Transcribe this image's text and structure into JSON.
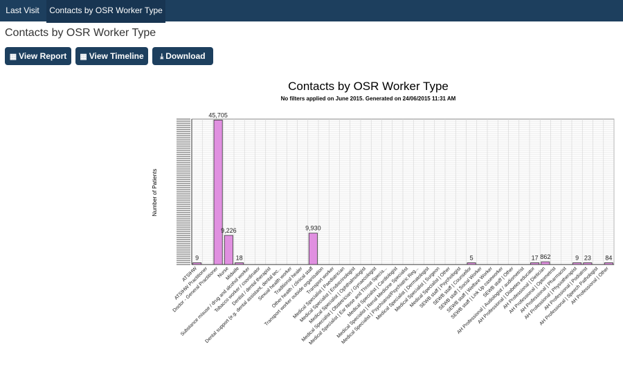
{
  "tabs": [
    {
      "label": "Last Visit"
    },
    {
      "label": "Contacts by OSR Worker Type"
    }
  ],
  "page": {
    "title": "Contacts by OSR Worker Type"
  },
  "toolbar": {
    "view_report": "View Report",
    "view_timeline": "View Timeline",
    "download": "Download"
  },
  "chart_data": {
    "type": "bar",
    "title": "Contacts by OSR Worker Type",
    "subtitle": "No filters applied on June 2015. Generated on 24/06/2015 11:31 AM",
    "ylabel": "Number of Patients",
    "xlabel": "",
    "bar_color": "#e090e0",
    "grid": true,
    "categories": [
      "ATSIHW",
      "ATSIHW Practitioner",
      "Doctor - General Practitioner",
      "Nurse",
      "Midwife",
      "Substance misuse / drug and alcohol worker",
      "Tobacco worker / coordinator",
      "Dentist / dental therapist",
      "Dental support (e.g. dental assistant, dental tec...",
      "Sexual health worker",
      "Traditional healer",
      "Other health / clinical staff",
      "Transport worker outside organisation",
      "Transport worker",
      "Medical Specialist | Paediatrician",
      "Medical Specialist | Endocrinologist",
      "Medical Specialist | Ophthalmologist",
      "Medical Specialist | Obstetrician / Gynaecologist",
      "Medical Specialist | Ear Nose and Throat Specia...",
      "Medical Specialist | Cardiologist",
      "Medical Specialist | Renal Medicine Specialist",
      "Medical Specialist | Psychiatrist/Psychiatric Reg...",
      "Medical Specialist | Dermatologist",
      "Medical Specialist | Surgeon",
      "Medical Specialist | Other",
      "SEWB staff | Psychologist",
      "SEWB staff | Counsellor",
      "SEWB staff | Social Worker",
      "SEWB staff | Welfare Worker",
      "SEWB staff | Link Up caseworker",
      "SEWB staff | Other",
      "AH Professional | Audiologist / audiometrist",
      "AH Professional | Diabetes educator",
      "AH Professional | Dietician",
      "AH Professional | Optometrist",
      "AH Professional | Pharmacist",
      "AH Professional | Physiotherapist",
      "AH Professional | Podiatrist",
      "AH Professional | Speech Pathologist",
      "AH Professional | Other"
    ],
    "values": [
      9,
      0,
      45705,
      9226,
      18,
      0,
      0,
      0,
      0,
      0,
      0,
      9930,
      0,
      0,
      0,
      0,
      0,
      0,
      0,
      0,
      0,
      0,
      0,
      0,
      0,
      0,
      5,
      0,
      0,
      0,
      0,
      0,
      17,
      862,
      0,
      0,
      9,
      23,
      0,
      84
    ],
    "data_labels": [
      "9",
      "",
      "45,705",
      "9,226",
      "18",
      "",
      "",
      "",
      "",
      "",
      "",
      "9,930",
      "",
      "",
      "",
      "",
      "",
      "",
      "",
      "",
      "",
      "",
      "",
      "",
      "",
      "",
      "5",
      "",
      "",
      "",
      "",
      "",
      "17",
      "862",
      "",
      "",
      "9",
      "23",
      "",
      "84"
    ],
    "ylim": [
      0,
      46000
    ]
  }
}
